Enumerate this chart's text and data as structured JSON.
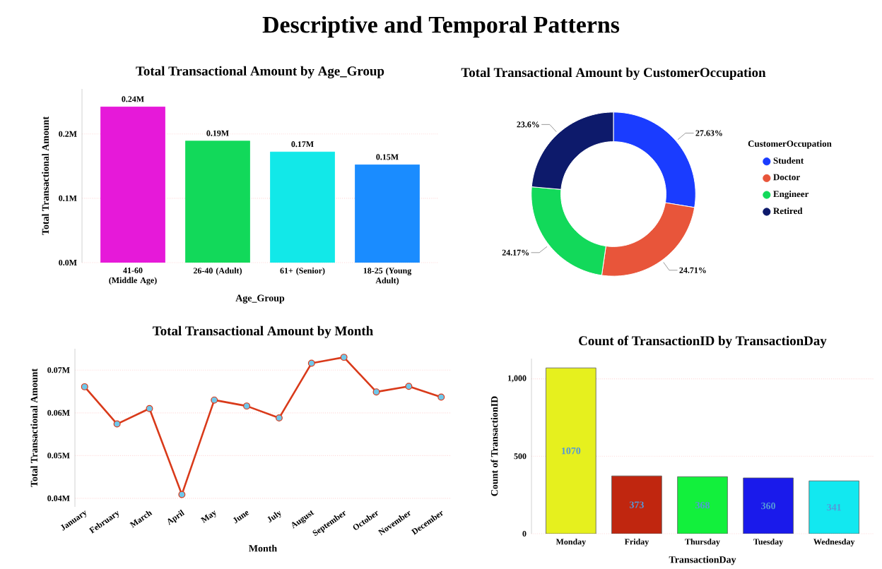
{
  "chart_data": [
    {
      "type": "bar",
      "title": "Total Transactional Amount by Age_Group",
      "xlabel": "Age_Group",
      "ylabel": "Total Transactional Amount",
      "annotations": [
        "Descriptive and Temporal Patterns"
      ],
      "categories": [
        "41-60 (Middle Age)",
        "26-40 (Adult)",
        "61+ (Senior)",
        "18-25 (Young Adult)"
      ],
      "values": [
        0.242,
        0.189,
        0.172,
        0.152
      ],
      "value_labels": [
        "0.24M",
        "0.19M",
        "0.17M",
        "0.15M"
      ],
      "colors": [
        "#e619d9",
        "#12d95a",
        "#12e8e8",
        "#1a8cff"
      ],
      "ylim": [
        0,
        0.27
      ],
      "yticks": [
        {
          "value": 0,
          "label": "0.0M"
        },
        {
          "value": 0.1,
          "label": "0.1M"
        },
        {
          "value": 0.2,
          "label": "0.2M"
        }
      ],
      "grid": "y"
    },
    {
      "type": "donut",
      "title": "Total Transactional Amount by CustomerOccupation",
      "legend_title": "CustomerOccupation",
      "categories": [
        "Student",
        "Doctor",
        "Engineer",
        "Retired"
      ],
      "values": [
        27.63,
        24.71,
        24.17,
        23.6
      ],
      "value_labels": [
        "27.63%",
        "24.71%",
        "24.17%",
        "23.6%"
      ],
      "colors": [
        "#1a3cff",
        "#e8553a",
        "#12d95a",
        "#0d1a6b"
      ],
      "legend": "right"
    },
    {
      "type": "line",
      "title": "Total Transactional Amount by Month",
      "xlabel": "Month",
      "ylabel": "Total Transactional Amount",
      "categories": [
        "January",
        "February",
        "March",
        "April",
        "May",
        "June",
        "July",
        "August",
        "September",
        "October",
        "November",
        "December"
      ],
      "series": [
        {
          "color": "#d93a1a",
          "values": [
            0.0661,
            0.0574,
            0.061,
            0.0409,
            0.063,
            0.0616,
            0.0588,
            0.0716,
            0.073,
            0.0649,
            0.0662,
            0.0637
          ]
        }
      ],
      "ylim": [
        0.038,
        0.075
      ],
      "yticks": [
        {
          "value": 0.04,
          "label": "0.04M"
        },
        {
          "value": 0.05,
          "label": "0.05M"
        },
        {
          "value": 0.06,
          "label": "0.06M"
        },
        {
          "value": 0.07,
          "label": "0.07M"
        }
      ],
      "grid": "y",
      "marker": "circle",
      "line_style": "solid"
    },
    {
      "type": "bar",
      "title": "Count of TransactionID by TransactionDay",
      "xlabel": "TransactionDay",
      "ylabel": "Count of TransactionID",
      "categories": [
        "Monday",
        "Friday",
        "Thursday",
        "Tuesday",
        "Wednesday"
      ],
      "values": [
        1070,
        373,
        368,
        360,
        341
      ],
      "colors": [
        "#e6f01e",
        "#c0260f",
        "#12f03c",
        "#1a1aeb",
        "#12e8f0"
      ],
      "data_labels": true,
      "ylim": [
        0,
        1130
      ],
      "yticks": [
        0,
        500,
        {
          "value": 1000,
          "label": "1,000"
        }
      ],
      "grid": "y"
    }
  ]
}
